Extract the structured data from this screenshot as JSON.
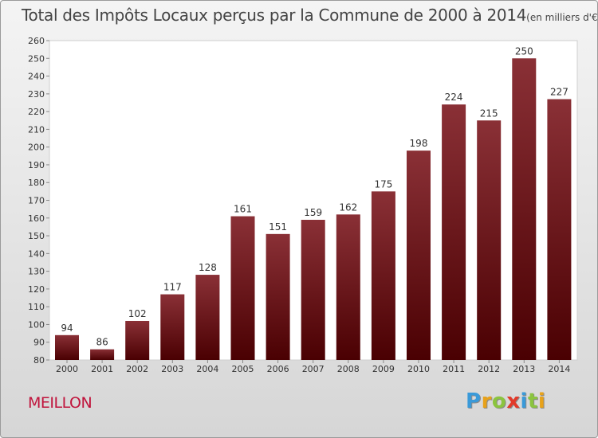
{
  "title": "Total des Impôts Locaux perçus par la Commune de 2000 à 2014",
  "title_unit": "(en milliers d'€)",
  "commune": "MEILLON",
  "logo": {
    "letters": [
      "P",
      "r",
      "o",
      "x",
      "i",
      "t",
      "i"
    ],
    "colors": [
      "#3a9ad9",
      "#e8a21a",
      "#8bc43f",
      "#e23a2a",
      "#3a9ad9",
      "#8bc43f",
      "#e8a21a"
    ]
  },
  "colors": {
    "bar_top": "#8a3036",
    "bar_bottom": "#4a0002",
    "text": "#333333"
  },
  "chart_data": {
    "type": "bar",
    "title": "Total des Impôts Locaux perçus par la Commune de 2000 à 2014",
    "xlabel": "",
    "ylabel": "",
    "categories": [
      "2000",
      "2001",
      "2002",
      "2003",
      "2004",
      "2005",
      "2006",
      "2007",
      "2008",
      "2009",
      "2010",
      "2011",
      "2012",
      "2013",
      "2014"
    ],
    "values": [
      94,
      86,
      102,
      117,
      128,
      161,
      151,
      159,
      162,
      175,
      198,
      224,
      215,
      250,
      227
    ],
    "ylim": [
      80,
      260
    ],
    "ytick_step": 10,
    "grid": false,
    "data_labels": true
  }
}
